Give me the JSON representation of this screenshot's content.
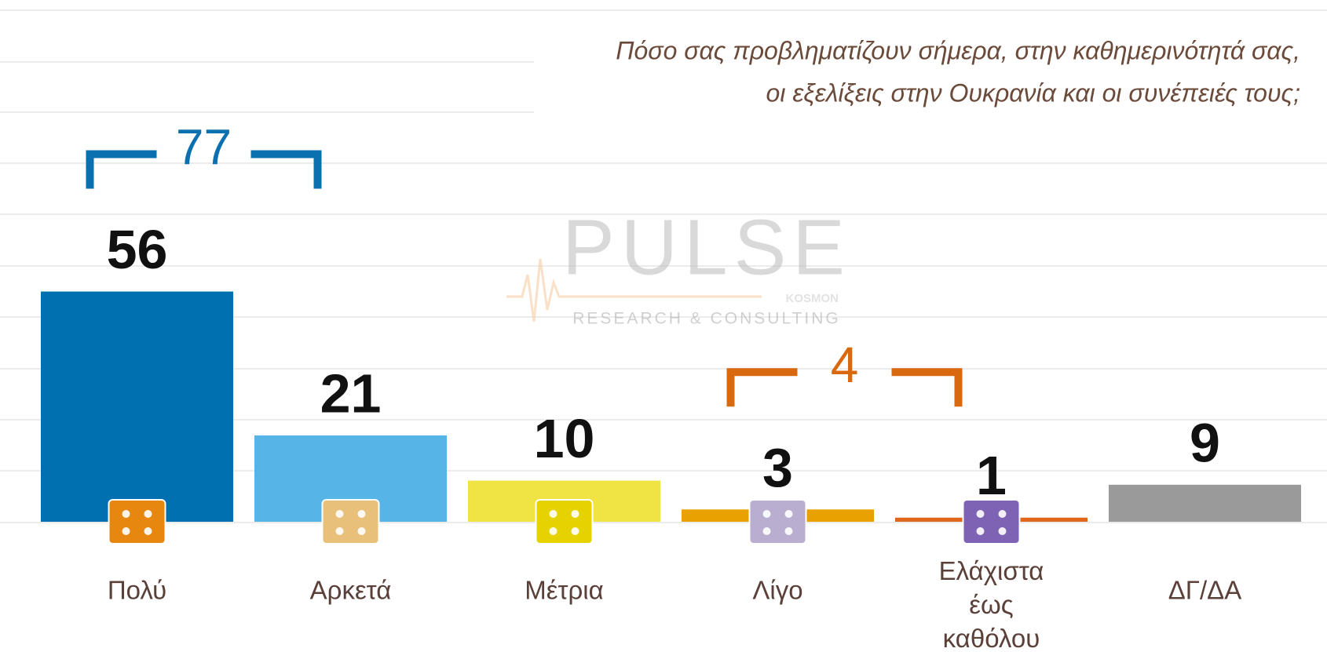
{
  "chart_data": {
    "type": "bar",
    "title": [
      "Πόσο σας προβληματίζουν σήμερα, στην καθημερινότητά σας,",
      "οι εξελίξεις στην Ουκρανία και οι συνέπειές τους;"
    ],
    "categories": [
      "Πολύ",
      "Αρκετά",
      "Μέτρια",
      "Λίγο",
      "Ελάχιστα έως καθόλου",
      "ΔΓ/ΔΑ"
    ],
    "values": [
      56,
      21,
      10,
      3,
      1,
      9
    ],
    "colors": [
      "#0070b0",
      "#56b4e6",
      "#f0e444",
      "#e8a100",
      "#e0661a",
      "#9a9a9a"
    ],
    "icon_colors": [
      "#e8870f",
      "#e8c07a",
      "#e6d200",
      "#b9aed0",
      "#7e62b4",
      null
    ],
    "annotations": [
      {
        "text": "77",
        "color": "#0a70b0",
        "members": [
          0,
          1
        ]
      },
      {
        "text": "4",
        "color": "#d9690f",
        "members": [
          3,
          4
        ]
      }
    ],
    "watermark": [
      "PULSE",
      "KOSMON",
      "RESEARCH & CONSULTING"
    ]
  }
}
